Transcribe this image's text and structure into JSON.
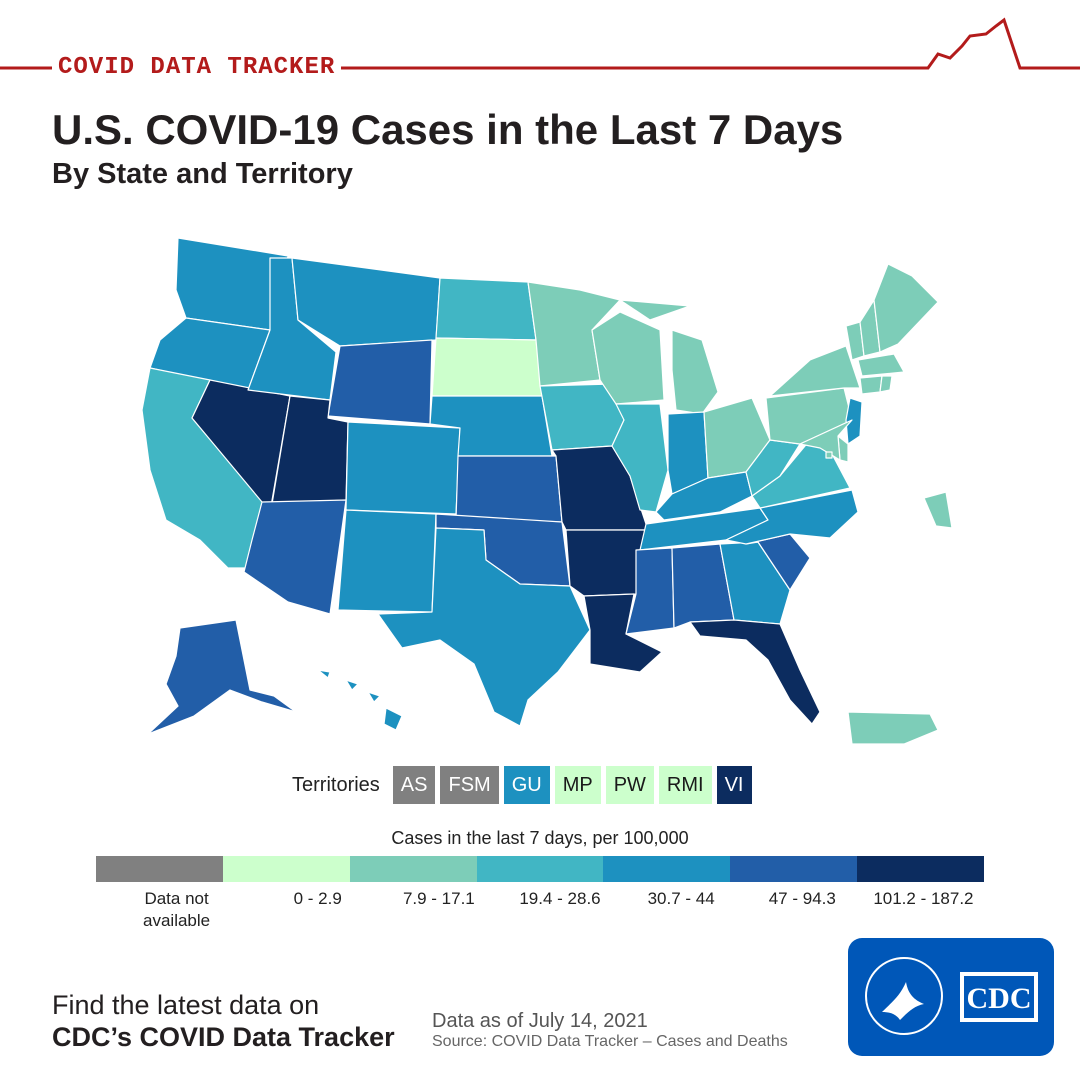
{
  "header": {
    "tracker_label": "COVID DATA TRACKER",
    "title": "U.S. COVID-19 Cases in the Last 7 Days",
    "subtitle": "By State and Territory"
  },
  "colors": {
    "accent_red": "#b31b1b",
    "na": "#808080",
    "bin1": "#ccffcc",
    "bin2": "#7dcdb8",
    "bin3": "#41b6c4",
    "bin4": "#1d91c0",
    "bin5": "#225ea8",
    "bin6": "#0c2c5f",
    "borders": "#ffffff",
    "cdc_blue": "#0057b8"
  },
  "map": {
    "states": [
      {
        "id": "WA",
        "bin": "bin4"
      },
      {
        "id": "OR",
        "bin": "bin4"
      },
      {
        "id": "CA",
        "bin": "bin3"
      },
      {
        "id": "NV",
        "bin": "bin6"
      },
      {
        "id": "ID",
        "bin": "bin4"
      },
      {
        "id": "MT",
        "bin": "bin4"
      },
      {
        "id": "WY",
        "bin": "bin5"
      },
      {
        "id": "UT",
        "bin": "bin6"
      },
      {
        "id": "AZ",
        "bin": "bin5"
      },
      {
        "id": "CO",
        "bin": "bin4"
      },
      {
        "id": "NM",
        "bin": "bin4"
      },
      {
        "id": "ND",
        "bin": "bin3"
      },
      {
        "id": "SD",
        "bin": "bin1"
      },
      {
        "id": "NE",
        "bin": "bin4"
      },
      {
        "id": "KS",
        "bin": "bin5"
      },
      {
        "id": "OK",
        "bin": "bin5"
      },
      {
        "id": "TX",
        "bin": "bin4"
      },
      {
        "id": "MN",
        "bin": "bin2"
      },
      {
        "id": "IA",
        "bin": "bin3"
      },
      {
        "id": "MO",
        "bin": "bin6"
      },
      {
        "id": "AR",
        "bin": "bin6"
      },
      {
        "id": "LA",
        "bin": "bin6"
      },
      {
        "id": "WI",
        "bin": "bin2"
      },
      {
        "id": "IL",
        "bin": "bin3"
      },
      {
        "id": "MI",
        "bin": "bin2"
      },
      {
        "id": "IN",
        "bin": "bin4"
      },
      {
        "id": "OH",
        "bin": "bin2"
      },
      {
        "id": "KY",
        "bin": "bin4"
      },
      {
        "id": "TN",
        "bin": "bin4"
      },
      {
        "id": "MS",
        "bin": "bin5"
      },
      {
        "id": "AL",
        "bin": "bin5"
      },
      {
        "id": "GA",
        "bin": "bin4"
      },
      {
        "id": "FL",
        "bin": "bin6"
      },
      {
        "id": "SC",
        "bin": "bin5"
      },
      {
        "id": "NC",
        "bin": "bin4"
      },
      {
        "id": "VA",
        "bin": "bin3"
      },
      {
        "id": "WV",
        "bin": "bin3"
      },
      {
        "id": "PA",
        "bin": "bin2"
      },
      {
        "id": "NY",
        "bin": "bin2"
      },
      {
        "id": "VT",
        "bin": "bin2"
      },
      {
        "id": "NH",
        "bin": "bin2"
      },
      {
        "id": "ME",
        "bin": "bin2"
      },
      {
        "id": "MA",
        "bin": "bin2"
      },
      {
        "id": "CT",
        "bin": "bin2"
      },
      {
        "id": "RI",
        "bin": "bin2"
      },
      {
        "id": "NJ",
        "bin": "bin4"
      },
      {
        "id": "DE",
        "bin": "bin2"
      },
      {
        "id": "MD",
        "bin": "bin2"
      },
      {
        "id": "DC",
        "bin": "bin2"
      },
      {
        "id": "AK",
        "bin": "bin5"
      },
      {
        "id": "HI",
        "bin": "bin4"
      },
      {
        "id": "PR",
        "bin": "bin2"
      }
    ]
  },
  "territories": {
    "label": "Territories",
    "items": [
      {
        "name": "AS",
        "bin": "na",
        "text": "light"
      },
      {
        "name": "FSM",
        "bin": "na",
        "text": "light"
      },
      {
        "name": "GU",
        "bin": "bin4",
        "text": "light"
      },
      {
        "name": "MP",
        "bin": "bin1",
        "text": "dark"
      },
      {
        "name": "PW",
        "bin": "bin1",
        "text": "dark"
      },
      {
        "name": "RMI",
        "bin": "bin1",
        "text": "dark"
      },
      {
        "name": "VI",
        "bin": "bin6",
        "text": "light"
      }
    ]
  },
  "legend": {
    "title": "Cases in the last 7 days, per 100,000",
    "bins": [
      {
        "color": "na",
        "label": "Data not available"
      },
      {
        "color": "bin1",
        "label": "0 - 2.9"
      },
      {
        "color": "bin2",
        "label": "7.9 - 17.1"
      },
      {
        "color": "bin3",
        "label": "19.4 - 28.6"
      },
      {
        "color": "bin4",
        "label": "30.7 - 44"
      },
      {
        "color": "bin5",
        "label": "47 - 94.3"
      },
      {
        "color": "bin6",
        "label": "101.2 - 187.2"
      }
    ]
  },
  "footer": {
    "cta_line1": "Find the latest data on",
    "cta_line2": "CDC’s COVID Data Tracker",
    "data_date": "Data as of July 14, 2021",
    "source": "Source: COVID Data Tracker – Cases and Deaths",
    "logo_text": "CDC"
  }
}
